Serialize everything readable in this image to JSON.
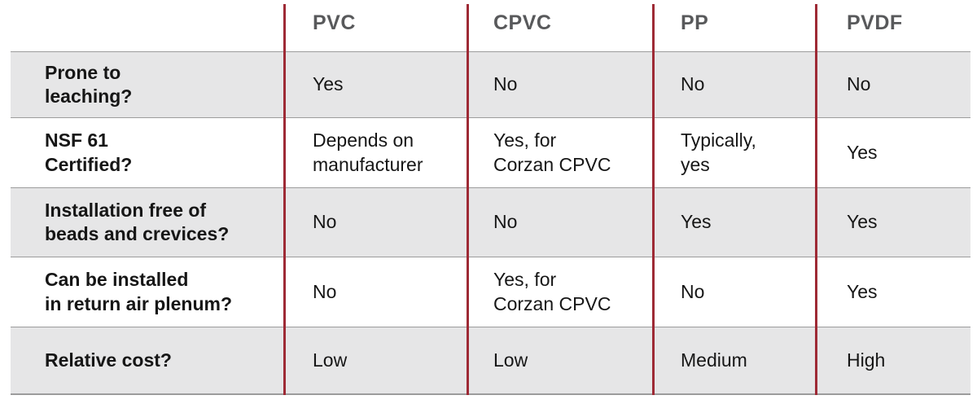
{
  "theme": {
    "divider_red": "#9E2A35",
    "row_gray": "#E6E6E7",
    "border_gray": "#9C9C9C",
    "header_text_color": "#58595B",
    "body_text_color": "#161616"
  },
  "table": {
    "columns": [
      "PVC",
      "CPVC",
      "PP",
      "PVDF"
    ],
    "rows": [
      {
        "label": "Prone to\nleaching?",
        "values": [
          "Yes",
          "No",
          "No",
          "No"
        ]
      },
      {
        "label": "NSF 61\nCertified?",
        "values": [
          "Depends on\nmanufacturer",
          "Yes, for\nCorzan CPVC",
          "Typically,\nyes",
          "Yes"
        ]
      },
      {
        "label": "Installation free of\nbeads and crevices?",
        "values": [
          "No",
          "No",
          "Yes",
          "Yes"
        ]
      },
      {
        "label": "Can be installed\nin return air plenum?",
        "values": [
          "No",
          "Yes, for\nCorzan CPVC",
          "No",
          "Yes"
        ]
      },
      {
        "label": "Relative cost?",
        "values": [
          "Low",
          "Low",
          "Medium",
          "High"
        ]
      }
    ]
  },
  "chart_data": {
    "type": "table",
    "columns": [
      "",
      "PVC",
      "CPVC",
      "PP",
      "PVDF"
    ],
    "rows": [
      [
        "Prone to leaching?",
        "Yes",
        "No",
        "No",
        "No"
      ],
      [
        "NSF 61 Certified?",
        "Depends on manufacturer",
        "Yes, for Corzan CPVC",
        "Typically, yes",
        "Yes"
      ],
      [
        "Installation free of beads and crevices?",
        "No",
        "No",
        "Yes",
        "Yes"
      ],
      [
        "Can be installed in return air plenum?",
        "No",
        "Yes, for Corzan CPVC",
        "No",
        "Yes"
      ],
      [
        "Relative cost?",
        "Low",
        "Low",
        "Medium",
        "High"
      ]
    ],
    "legend_position": "none",
    "grid": "row-dividers-and-red-column-lines"
  }
}
